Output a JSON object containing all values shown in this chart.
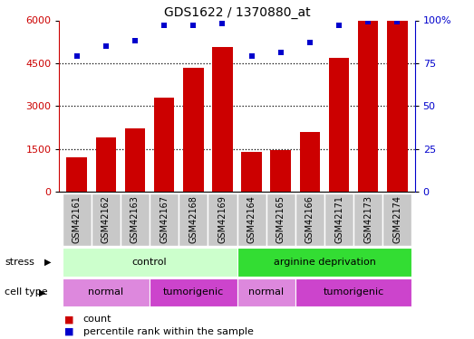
{
  "title": "GDS1622 / 1370880_at",
  "samples": [
    "GSM42161",
    "GSM42162",
    "GSM42163",
    "GSM42167",
    "GSM42168",
    "GSM42169",
    "GSM42164",
    "GSM42165",
    "GSM42166",
    "GSM42171",
    "GSM42173",
    "GSM42174"
  ],
  "counts": [
    1200,
    1900,
    2200,
    3300,
    4350,
    5050,
    1380,
    1450,
    2100,
    4700,
    6000,
    6000
  ],
  "percentile": [
    79,
    85,
    88,
    97,
    97,
    98,
    79,
    81,
    87,
    97,
    99,
    99
  ],
  "ylim_left": [
    0,
    6000
  ],
  "ylim_right": [
    0,
    100
  ],
  "yticks_left": [
    0,
    1500,
    3000,
    4500,
    6000
  ],
  "yticks_right": [
    0,
    25,
    50,
    75,
    100
  ],
  "bar_color": "#cc0000",
  "dot_color": "#0000cc",
  "stress_labels": [
    {
      "text": "control",
      "start": 0,
      "end": 5,
      "color": "#ccffcc"
    },
    {
      "text": "arginine deprivation",
      "start": 6,
      "end": 11,
      "color": "#33dd33"
    }
  ],
  "cell_type_labels": [
    {
      "text": "normal",
      "start": 0,
      "end": 2,
      "color": "#dd88dd"
    },
    {
      "text": "tumorigenic",
      "start": 3,
      "end": 5,
      "color": "#cc44cc"
    },
    {
      "text": "normal",
      "start": 6,
      "end": 7,
      "color": "#dd88dd"
    },
    {
      "text": "tumorigenic",
      "start": 8,
      "end": 11,
      "color": "#cc44cc"
    }
  ],
  "legend_count_label": "count",
  "legend_pct_label": "percentile rank within the sample",
  "stress_arrow_label": "stress",
  "cell_type_arrow_label": "cell type",
  "left_axis_color": "#cc0000",
  "right_axis_color": "#0000cc",
  "sample_bg_color": "#c8c8c8",
  "sample_sep_color": "#ffffff"
}
